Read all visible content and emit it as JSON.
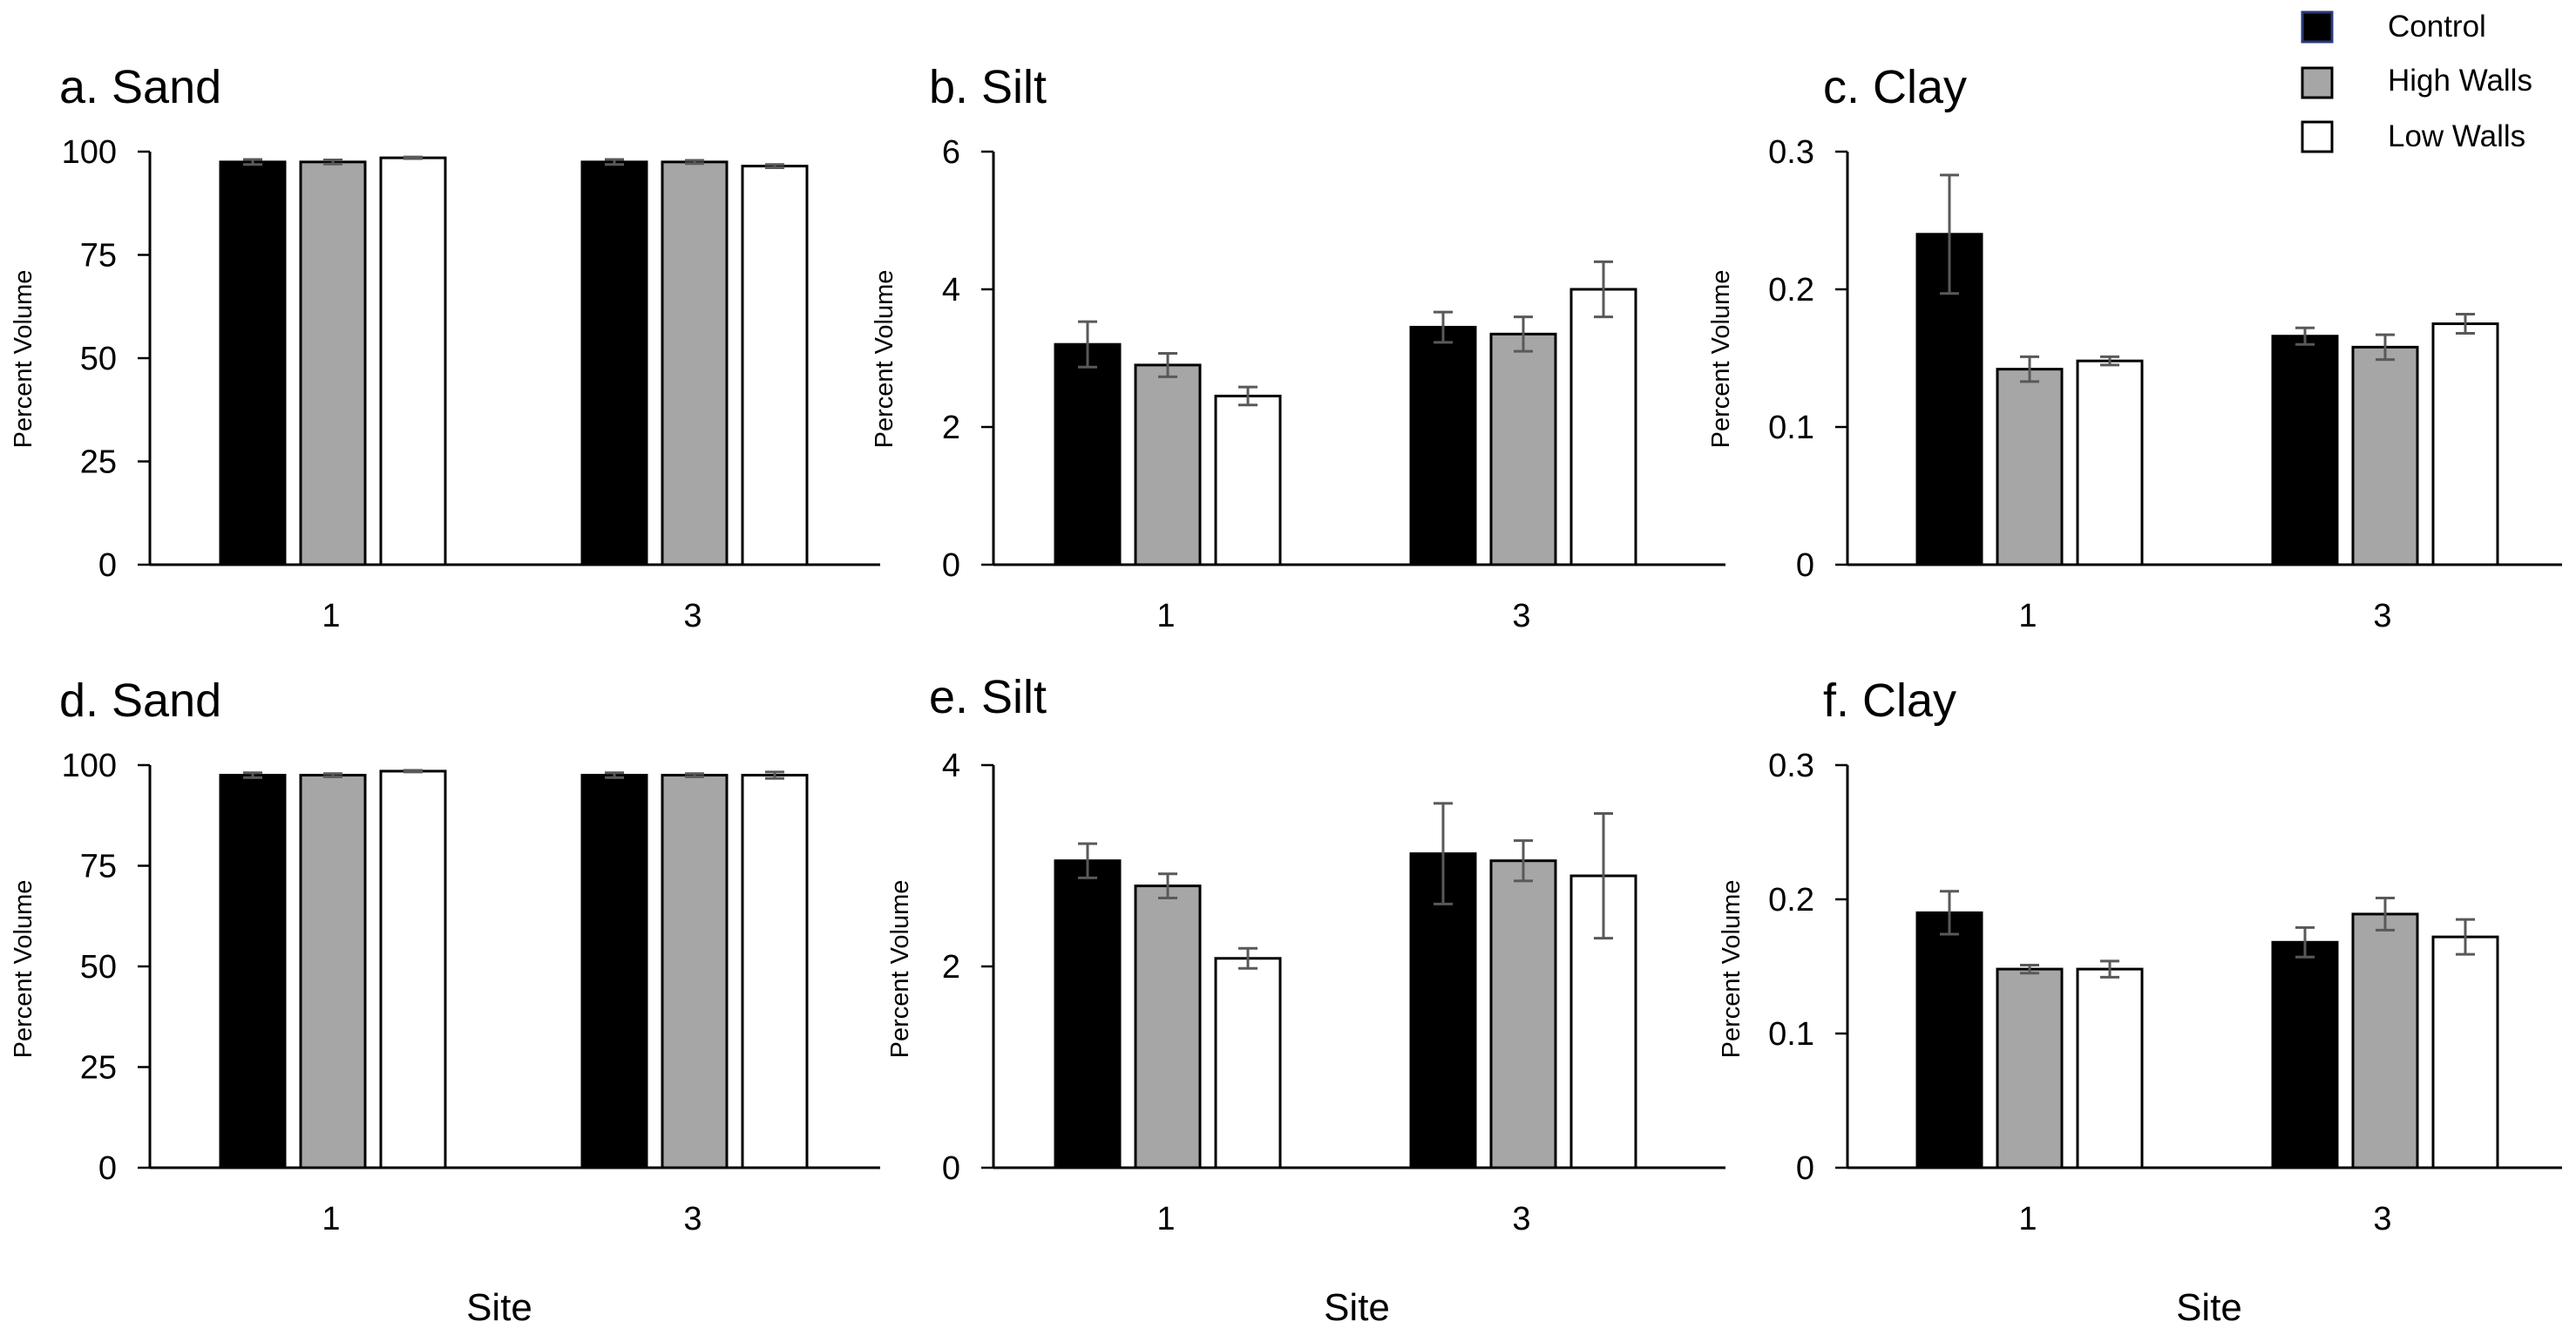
{
  "colors": {
    "control": "#000000",
    "high_walls": "#a6a6a6",
    "low_walls": "#ffffff",
    "axis": "#000000",
    "error": "#595959"
  },
  "legend": [
    {
      "key": "control",
      "label": "Control"
    },
    {
      "key": "high_walls",
      "label": "High Walls"
    },
    {
      "key": "low_walls",
      "label": "Low Walls"
    }
  ],
  "site_label": "Site",
  "chart_data": [
    {
      "id": "a",
      "type": "bar",
      "title": "a. Sand",
      "ylabel": "Percent Volume",
      "ylim": [
        0,
        100
      ],
      "yticks": [
        "0",
        "25",
        "50",
        "75",
        "100"
      ],
      "categories": [
        "1",
        "3"
      ],
      "series": [
        {
          "name": "Control",
          "values": [
            97.5,
            97.5
          ],
          "errors": [
            0.6,
            0.6
          ]
        },
        {
          "name": "High Walls",
          "values": [
            97.5,
            97.5
          ],
          "errors": [
            0.5,
            0.4
          ]
        },
        {
          "name": "Low Walls",
          "values": [
            98.5,
            96.5
          ],
          "errors": [
            0.2,
            0.4
          ]
        }
      ]
    },
    {
      "id": "b",
      "type": "bar",
      "title": "b. Silt",
      "ylabel": "Percent Volume",
      "ylim": [
        0,
        6
      ],
      "yticks": [
        "0",
        "2",
        "4",
        "6"
      ],
      "categories": [
        "1",
        "3"
      ],
      "series": [
        {
          "name": "Control",
          "values": [
            3.2,
            3.45
          ],
          "errors": [
            0.33,
            0.22
          ]
        },
        {
          "name": "High Walls",
          "values": [
            2.9,
            3.35
          ],
          "errors": [
            0.17,
            0.25
          ]
        },
        {
          "name": "Low Walls",
          "values": [
            2.45,
            4.0
          ],
          "errors": [
            0.13,
            0.4
          ]
        }
      ]
    },
    {
      "id": "c",
      "type": "bar",
      "title": "c. Clay",
      "ylabel": "Percent Volume",
      "ylim": [
        0,
        0.3
      ],
      "yticks": [
        "0",
        "0.1",
        "0.2",
        "0.3"
      ],
      "categories": [
        "1",
        "3"
      ],
      "series": [
        {
          "name": "Control",
          "values": [
            0.24,
            0.166
          ],
          "errors": [
            0.043,
            0.006
          ]
        },
        {
          "name": "High Walls",
          "values": [
            0.142,
            0.158
          ],
          "errors": [
            0.009,
            0.009
          ]
        },
        {
          "name": "Low Walls",
          "values": [
            0.148,
            0.175
          ],
          "errors": [
            0.003,
            0.007
          ]
        }
      ]
    },
    {
      "id": "d",
      "type": "bar",
      "title": "d. Sand",
      "ylabel": "Percent Volume",
      "ylim": [
        0,
        100
      ],
      "yticks": [
        "0",
        "25",
        "50",
        "75",
        "100"
      ],
      "categories": [
        "1",
        "3"
      ],
      "series": [
        {
          "name": "Control",
          "values": [
            97.5,
            97.5
          ],
          "errors": [
            0.6,
            0.6
          ]
        },
        {
          "name": "High Walls",
          "values": [
            97.5,
            97.5
          ],
          "errors": [
            0.4,
            0.4
          ]
        },
        {
          "name": "Low Walls",
          "values": [
            98.5,
            97.5
          ],
          "errors": [
            0.2,
            0.8
          ]
        }
      ]
    },
    {
      "id": "e",
      "type": "bar",
      "title": "e. Silt",
      "ylabel": "Percent Volume",
      "ylim": [
        0,
        4
      ],
      "yticks": [
        "0",
        "2",
        "4"
      ],
      "categories": [
        "1",
        "3"
      ],
      "series": [
        {
          "name": "Control",
          "values": [
            3.05,
            3.12
          ],
          "errors": [
            0.17,
            0.5
          ]
        },
        {
          "name": "High Walls",
          "values": [
            2.8,
            3.05
          ],
          "errors": [
            0.12,
            0.2
          ]
        },
        {
          "name": "Low Walls",
          "values": [
            2.08,
            2.9
          ],
          "errors": [
            0.1,
            0.62
          ]
        }
      ]
    },
    {
      "id": "f",
      "type": "bar",
      "title": "f. Clay",
      "ylabel": "Percent Volume",
      "ylim": [
        0,
        0.3
      ],
      "yticks": [
        "0",
        "0.1",
        "0.2",
        "0.3"
      ],
      "categories": [
        "1",
        "3"
      ],
      "series": [
        {
          "name": "Control",
          "values": [
            0.19,
            0.168
          ],
          "errors": [
            0.016,
            0.011
          ]
        },
        {
          "name": "High Walls",
          "values": [
            0.148,
            0.189
          ],
          "errors": [
            0.003,
            0.012
          ]
        },
        {
          "name": "Low Walls",
          "values": [
            0.148,
            0.172
          ],
          "errors": [
            0.006,
            0.013
          ]
        }
      ]
    }
  ]
}
